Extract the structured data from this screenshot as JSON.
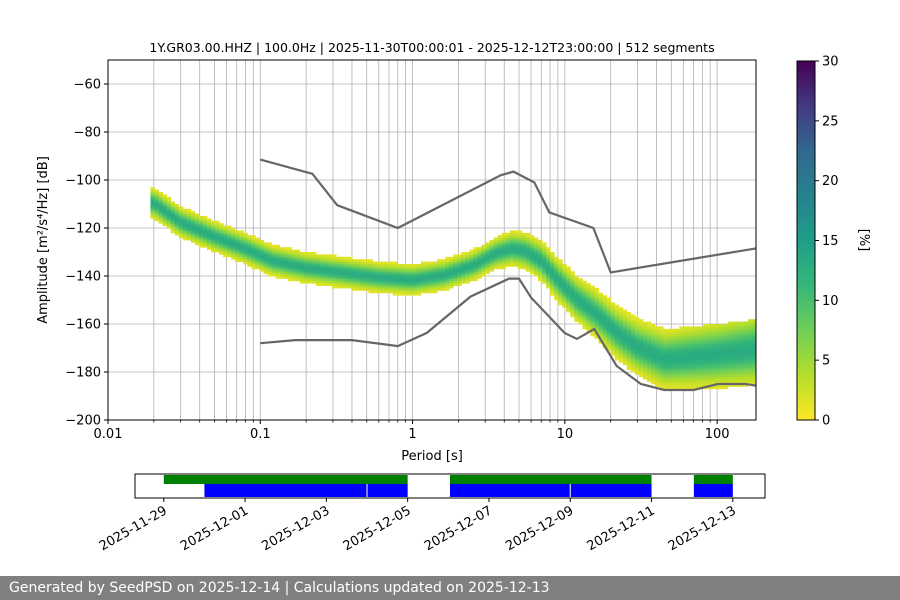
{
  "title": "1Y.GR03.00.HHZ | 100.0Hz | 2025-11-30T00:00:01 - 2025-12-12T23:00:00 | 512 segments",
  "footer": "Generated by SeedPSD on 2025-12-14 | Calculations updated on 2025-12-13",
  "chart_data": [
    {
      "type": "heatmap",
      "title": "1Y.GR03.00.HHZ | 100.0Hz | 2025-11-30T00:00:01 - 2025-12-12T23:00:00 | 512 segments",
      "xlabel": "Period [s]",
      "ylabel": "Amplitude [m²/s⁴/Hz] [dB]",
      "x_scale": "log",
      "xlim": [
        0.01,
        180
      ],
      "ylim": [
        -200,
        -50
      ],
      "x_ticks": [
        0.01,
        0.1,
        1,
        10,
        100
      ],
      "x_tick_labels": [
        "0.01",
        "0.1",
        "1",
        "10",
        "100"
      ],
      "y_ticks": [
        -200,
        -180,
        -160,
        -140,
        -120,
        -100,
        -80,
        -60
      ],
      "grid": true,
      "colorbar": {
        "label": "[%]",
        "range": [
          0,
          30
        ],
        "ticks": [
          0,
          5,
          10,
          15,
          20,
          25,
          30
        ],
        "colormap": "viridis_r"
      },
      "series": [
        {
          "name": "mode",
          "x": [
            0.02,
            0.03,
            0.05,
            0.08,
            0.12,
            0.2,
            0.35,
            0.6,
            1.0,
            1.6,
            2.5,
            3.5,
            4.5,
            5.5,
            7,
            9,
            12,
            16,
            22,
            30,
            45,
            70,
            100,
            180
          ],
          "y": [
            -110,
            -118,
            -124,
            -129,
            -134,
            -137,
            -139,
            -141,
            -142,
            -140,
            -136,
            -131,
            -129,
            -130,
            -134,
            -142,
            -150,
            -156,
            -164,
            -170,
            -175,
            -174,
            -173,
            -171
          ]
        },
        {
          "name": "high noise model",
          "x": [
            0.1,
            0.22,
            0.32,
            0.8,
            3.8,
            4.6,
            6.3,
            7.9,
            15.4,
            20,
            180
          ],
          "y": [
            -91.5,
            -97.4,
            -110.5,
            -120,
            -98,
            -96.5,
            -101,
            -113.5,
            -120,
            -138.5,
            -128.5
          ]
        },
        {
          "name": "low noise model",
          "x": [
            0.1,
            0.17,
            0.4,
            0.8,
            1.24,
            2.4,
            4.3,
            5,
            6,
            10,
            12,
            15.6,
            21.9,
            31.6,
            45,
            70,
            101,
            154,
            180
          ],
          "y": [
            -168,
            -166.7,
            -166.7,
            -169.2,
            -163.7,
            -148.6,
            -141.1,
            -141.1,
            -149,
            -163.8,
            -166.2,
            -162.1,
            -177.5,
            -185,
            -187.5,
            -187.5,
            -185,
            -185,
            -185.7
          ]
        }
      ]
    },
    {
      "type": "timeline",
      "x_tick_labels": [
        "2025-11-29",
        "2025-12-01",
        "2025-12-03",
        "2025-12-05",
        "2025-12-07",
        "2025-12-09",
        "2025-12-11",
        "2025-12-13"
      ],
      "xlim": [
        "2025-11-28T07:00",
        "2025-12-13T19:00"
      ],
      "series": [
        {
          "name": "data availability",
          "color": "#008000",
          "intervals": [
            [
              "2025-11-29T00:00",
              "2025-12-05T00:00"
            ],
            [
              "2025-12-06T01:00",
              "2025-12-11T00:00"
            ],
            [
              "2025-12-12T01:00",
              "2025-12-13T00:00"
            ]
          ]
        },
        {
          "name": "processed segments",
          "color": "#0000ff",
          "intervals": [
            [
              "2025-11-30T00:00",
              "2025-12-05T00:00"
            ],
            [
              "2025-12-06T01:00",
              "2025-12-11T00:00"
            ],
            [
              "2025-12-12T01:00",
              "2025-12-13T00:00"
            ]
          ]
        }
      ]
    }
  ]
}
